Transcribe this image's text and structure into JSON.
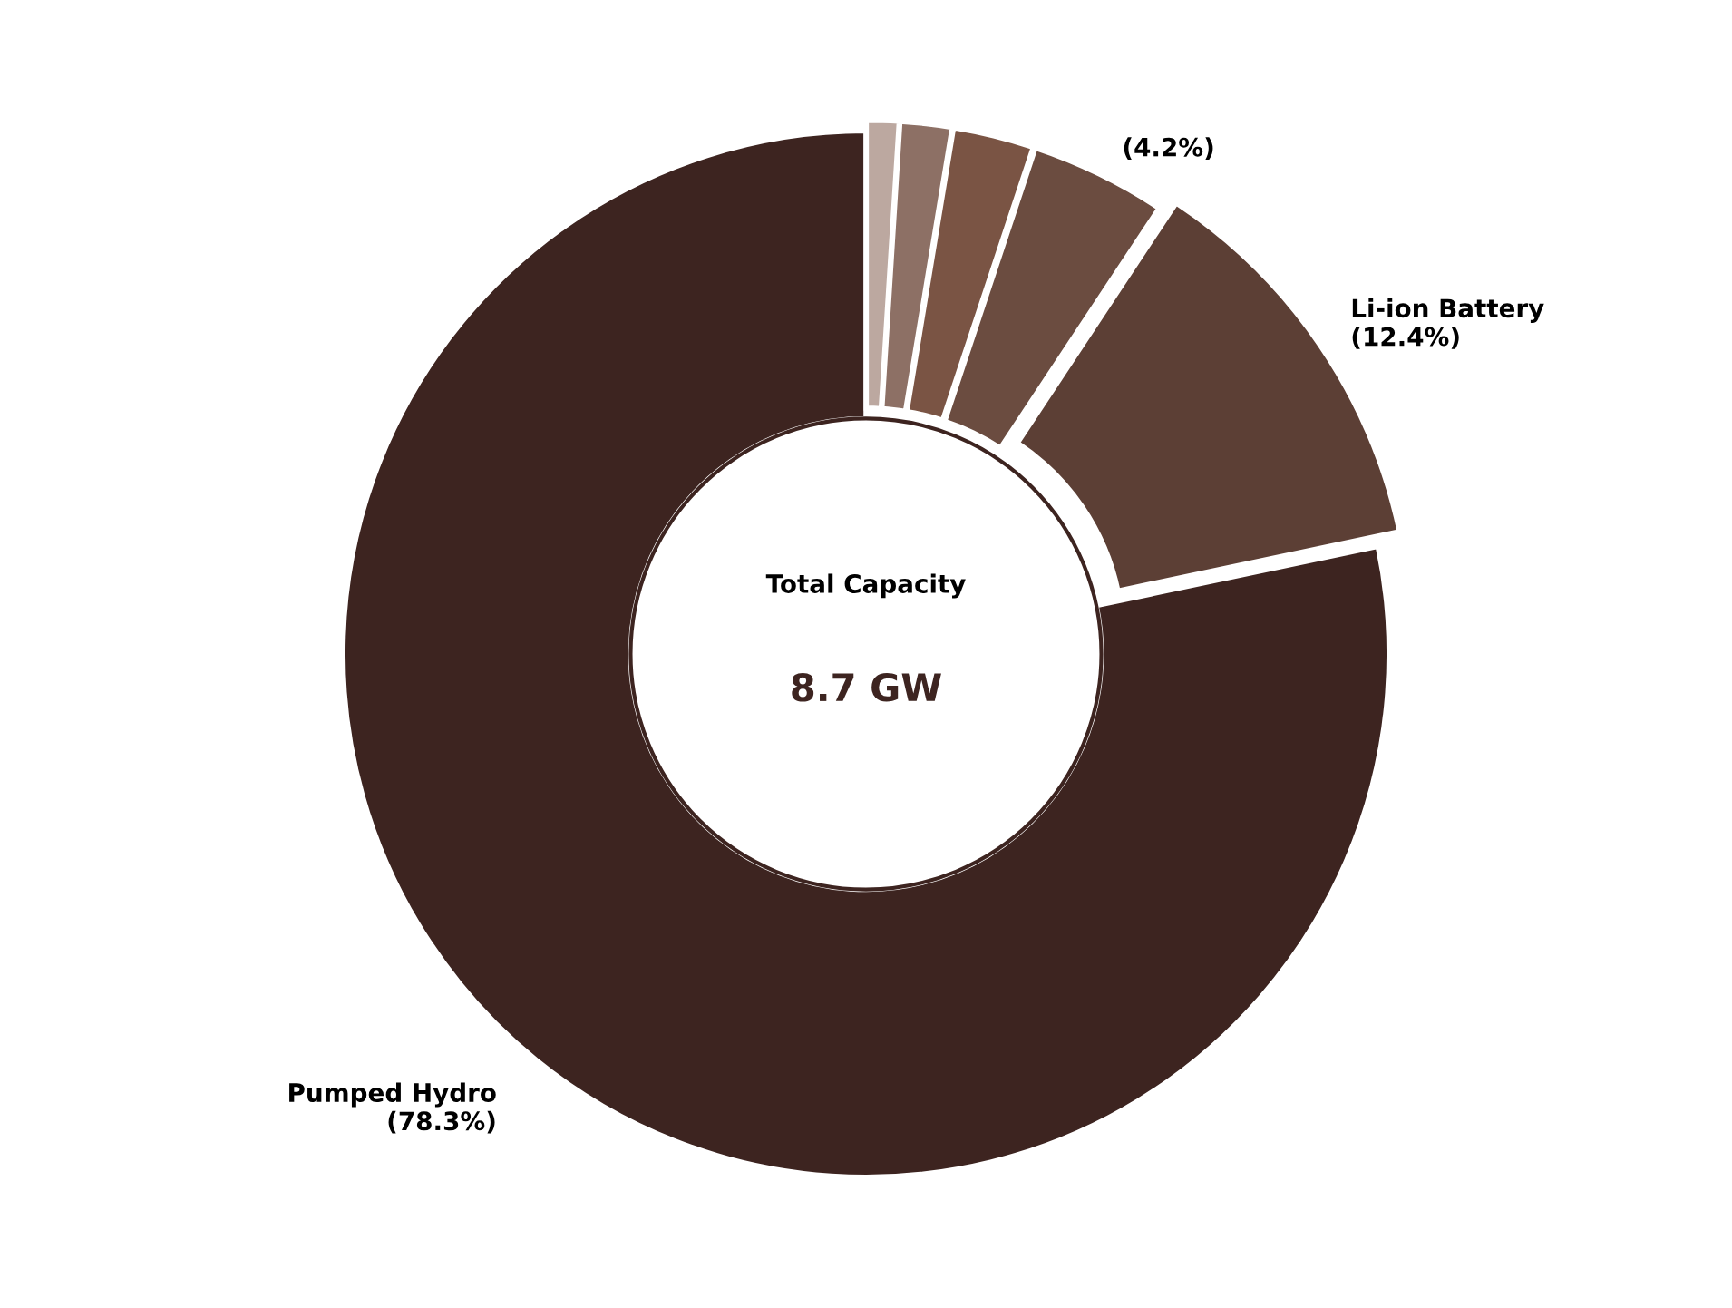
{
  "chart_data": {
    "type": "donut",
    "categories": [
      "Pumped Hydro",
      "Li-ion Battery",
      null,
      null,
      null,
      null
    ],
    "values": [
      78.3,
      12.4,
      4.2,
      2.5,
      1.6,
      1.0
    ],
    "colors": [
      "#3d2420",
      "#5c3f35",
      "#6b4c40",
      "#7a5444",
      "#8d7065",
      "#bca8a0"
    ],
    "value_labels": [
      "(78.3%)",
      "(12.4%)",
      "(4.2%)",
      null,
      null,
      null
    ],
    "annotations": [
      "Total Capacity",
      "8.7 GW"
    ]
  }
}
